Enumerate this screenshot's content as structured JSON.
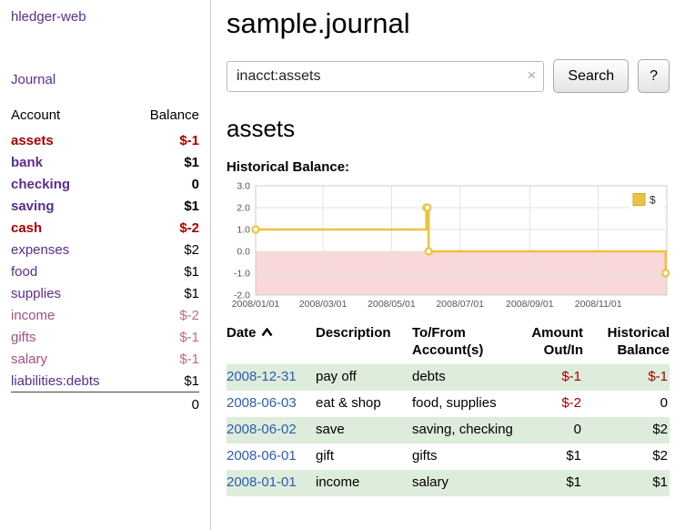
{
  "app": {
    "title": "hledger-web"
  },
  "colors": {
    "link_purple": "#5b2d90",
    "negative_dark": "#a40000",
    "negative_pink": "#c06a80",
    "mauve": "#a05283",
    "date_blue": "#2a5db0",
    "row_green": "#deecdb"
  },
  "sidebar": {
    "journal_link": "Journal",
    "accounts": {
      "account_header": "Account",
      "balance_header": "Balance",
      "rows": [
        {
          "name": "assets",
          "balance": "$-1",
          "indent": 0,
          "bold": true,
          "name_tone": "neg",
          "bal_tone": "neg"
        },
        {
          "name": "bank",
          "balance": "$1",
          "indent": 1,
          "bold": true,
          "name_tone": "purple",
          "bal_tone": "pos"
        },
        {
          "name": "checking",
          "balance": "0",
          "indent": 2,
          "bold": true,
          "name_tone": "purple",
          "bal_tone": "pos"
        },
        {
          "name": "saving",
          "balance": "$1",
          "indent": 2,
          "bold": true,
          "name_tone": "purple",
          "bal_tone": "pos"
        },
        {
          "name": "cash",
          "balance": "$-2",
          "indent": 1,
          "bold": true,
          "name_tone": "neg",
          "bal_tone": "neg"
        },
        {
          "name": "expenses",
          "balance": "$2",
          "indent": 0,
          "bold": false,
          "name_tone": "purple",
          "bal_tone": "pos"
        },
        {
          "name": "food",
          "balance": "$1",
          "indent": 1,
          "bold": false,
          "name_tone": "purple",
          "bal_tone": "pos"
        },
        {
          "name": "supplies",
          "balance": "$1",
          "indent": 1,
          "bold": false,
          "name_tone": "purple",
          "bal_tone": "pos"
        },
        {
          "name": "income",
          "balance": "$-2",
          "indent": 0,
          "bold": false,
          "name_tone": "mauve",
          "bal_tone": "neg-light"
        },
        {
          "name": "gifts",
          "balance": "$-1",
          "indent": 1,
          "bold": false,
          "name_tone": "mauve",
          "bal_tone": "neg-light"
        },
        {
          "name": "salary",
          "balance": "$-1",
          "indent": 1,
          "bold": false,
          "name_tone": "mauve",
          "bal_tone": "neg-light"
        },
        {
          "name": "liabilities:debts",
          "balance": "$1",
          "indent": 0,
          "bold": false,
          "name_tone": "purple",
          "bal_tone": "pos"
        }
      ],
      "total": "0"
    }
  },
  "main": {
    "title": "sample.journal",
    "search": {
      "value": "inacct:assets",
      "clear_icon": "×",
      "button_label": "Search",
      "help_label": "?"
    },
    "account_heading": "assets",
    "chart_label": "Historical Balance:"
  },
  "chart_data": {
    "type": "line",
    "step": true,
    "title": "Historical Balance",
    "series": [
      {
        "name": "$",
        "points": [
          [
            "2008-01-01",
            1
          ],
          [
            "2008-06-01",
            2
          ],
          [
            "2008-06-02",
            2
          ],
          [
            "2008-06-03",
            0
          ],
          [
            "2008-12-31",
            -1
          ]
        ]
      }
    ],
    "xrange": [
      "2008-01-01",
      "2009-01-01"
    ],
    "ylim": [
      -2,
      3
    ],
    "yticks": [
      3.0,
      2.0,
      1.0,
      0.0,
      -1.0,
      -2.0
    ],
    "ytick_labels": [
      "3.0",
      "2.0",
      "1.0",
      "0.0",
      "-1.0",
      "-2.0"
    ],
    "xticks": [
      {
        "date": "2008-01-01",
        "label": "2008/01/01"
      },
      {
        "date": "2008-03-01",
        "label": "2008/03/01"
      },
      {
        "date": "2008-05-01",
        "label": "2008/05/01"
      },
      {
        "date": "2008-07-01",
        "label": "2008/07/01"
      },
      {
        "date": "2008-09-01",
        "label": "2008/09/01"
      },
      {
        "date": "2008-11-01",
        "label": "2008/11/01"
      }
    ],
    "legend": {
      "label": "$",
      "position": "top-right"
    },
    "line_color": "#edc240",
    "negative_region_color": "#f8d8d8",
    "grid": true
  },
  "register": {
    "headers": {
      "date": "Date",
      "description": "Description",
      "tofrom_line1": "To/From",
      "tofrom_line2": "Account(s)",
      "amount_line1": "Amount",
      "amount_line2": "Out/In",
      "balance_line1": "Historical",
      "balance_line2": "Balance"
    },
    "rows": [
      {
        "date": "2008-12-31",
        "description": "pay off",
        "accounts": "debts",
        "amount": "$-1",
        "amount_negative": true,
        "balance": "$-1",
        "balance_negative": true
      },
      {
        "date": "2008-06-03",
        "description": "eat & shop",
        "accounts": "food, supplies",
        "amount": "$-2",
        "amount_negative": true,
        "balance": "0",
        "balance_negative": false
      },
      {
        "date": "2008-06-02",
        "description": "save",
        "accounts": "saving, checking",
        "amount": "0",
        "amount_negative": false,
        "balance": "$2",
        "balance_negative": false
      },
      {
        "date": "2008-06-01",
        "description": "gift",
        "accounts": "gifts",
        "amount": "$1",
        "amount_negative": false,
        "balance": "$2",
        "balance_negative": false
      },
      {
        "date": "2008-01-01",
        "description": "income",
        "accounts": "salary",
        "amount": "$1",
        "amount_negative": false,
        "balance": "$1",
        "balance_negative": false
      }
    ]
  }
}
